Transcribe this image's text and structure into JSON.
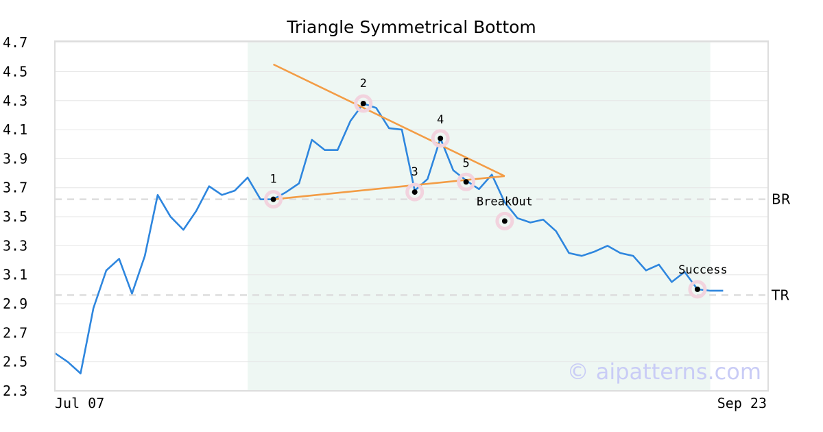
{
  "chart_data": {
    "type": "line",
    "title": "Triangle Symmetrical Bottom",
    "x_tick_labels": [
      "Jul 07",
      "Sep 23"
    ],
    "y_ticks": [
      2.3,
      2.5,
      2.7,
      2.9,
      3.1,
      3.3,
      3.5,
      3.7,
      3.9,
      4.1,
      4.3,
      4.5,
      4.7
    ],
    "y_tick_labels": [
      "2.3",
      "2.5",
      "2.7",
      "2.9",
      "3.1",
      "3.3",
      "3.5",
      "3.7",
      "3.9",
      "4.1",
      "4.3",
      "4.5",
      "4.7"
    ],
    "ylim": [
      2.3,
      4.71
    ],
    "xlim": [
      0,
      55.5
    ],
    "series": [
      {
        "values": [
          2.56,
          2.5,
          2.42,
          2.87,
          3.13,
          3.21,
          2.97,
          3.23,
          3.65,
          3.5,
          3.41,
          3.54,
          3.71,
          3.65,
          3.68,
          3.77,
          3.62,
          3.62,
          3.67,
          3.73,
          4.03,
          3.96,
          3.96,
          4.16,
          4.28,
          4.25,
          4.11,
          4.1,
          3.68,
          3.76,
          4.04,
          3.82,
          3.75,
          3.69,
          3.79,
          3.6,
          3.49,
          3.46,
          3.48,
          3.4,
          3.25,
          3.23,
          3.26,
          3.3,
          3.25,
          3.23,
          3.13,
          3.17,
          3.05,
          3.12,
          3.0,
          2.99,
          2.99
        ],
        "color": "#2e86de"
      }
    ],
    "pattern_region": {
      "x_start": 15,
      "x_end": 51,
      "color": "#eef7f3"
    },
    "trendlines": [
      {
        "x": [
          17,
          35
        ],
        "y": [
          4.55,
          3.78
        ],
        "color": "#f39c45"
      },
      {
        "x": [
          17,
          35
        ],
        "y": [
          3.62,
          3.78
        ],
        "color": "#f39c45"
      }
    ],
    "points": [
      {
        "label": "1",
        "x": 17,
        "y": 3.62
      },
      {
        "label": "2",
        "x": 24,
        "y": 4.28
      },
      {
        "label": "3",
        "x": 28,
        "y": 3.67
      },
      {
        "label": "4",
        "x": 30,
        "y": 4.04
      },
      {
        "label": "5",
        "x": 32,
        "y": 3.74
      },
      {
        "label": "BreakOut",
        "x": 35,
        "y": 3.47
      },
      {
        "label": "Success",
        "x": 50,
        "y": 3.0
      }
    ],
    "reference_lines": [
      {
        "label": "BR",
        "y": 3.62
      },
      {
        "label": "TR",
        "y": 2.96
      }
    ],
    "grid": true,
    "legend": "none"
  },
  "watermark": "© aipatterns.com",
  "colors": {
    "marker_halo": "#f2d3de",
    "marker_dot": "#000000",
    "reference_line": "#dddddd",
    "gridline": "#e6e6e6",
    "axis_frame": "#dddddd"
  }
}
